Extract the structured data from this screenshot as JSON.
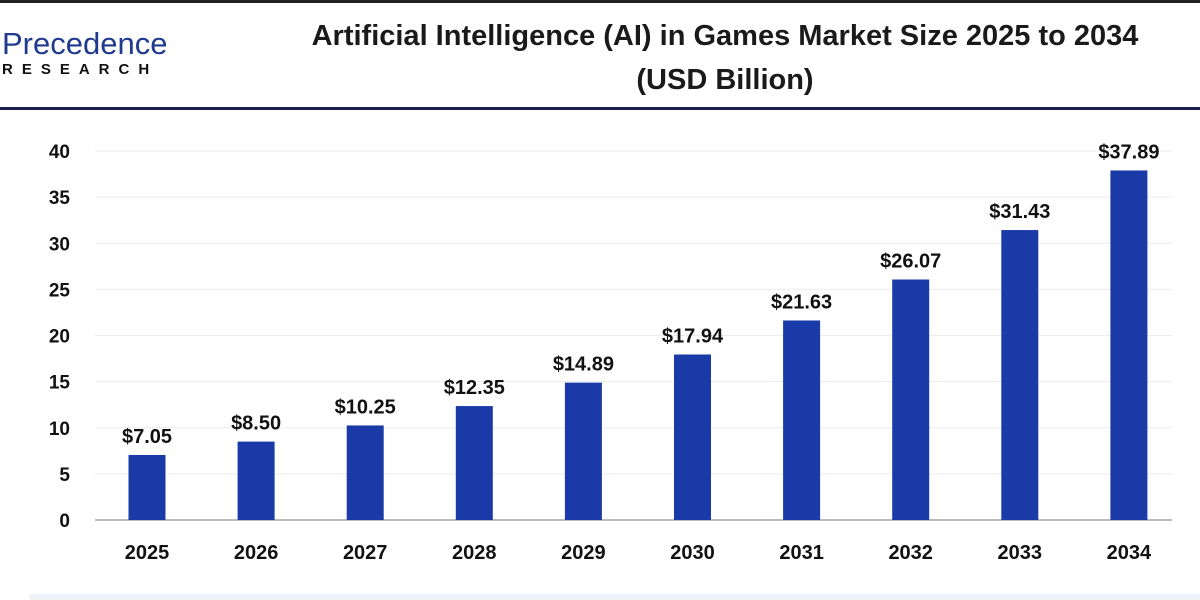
{
  "logo": {
    "line1": "Precedence",
    "line2": "RESEARCH"
  },
  "chart_data": {
    "type": "bar",
    "title": "Artificial Intelligence (AI) in Games Market Size 2025 to 2034",
    "subtitle": "(USD Billion)",
    "categories": [
      "2025",
      "2026",
      "2027",
      "2028",
      "2029",
      "2030",
      "2031",
      "2032",
      "2033",
      "2034"
    ],
    "values": [
      7.05,
      8.5,
      10.25,
      12.35,
      14.89,
      17.94,
      21.63,
      26.07,
      31.43,
      37.89
    ],
    "data_labels": [
      "$7.05",
      "$8.50",
      "$10.25",
      "$12.35",
      "$14.89",
      "$17.94",
      "$21.63",
      "$26.07",
      "$31.43",
      "$37.89"
    ],
    "yticks": [
      0,
      5,
      10,
      15,
      20,
      25,
      30,
      35,
      40
    ],
    "ylim": [
      0,
      40
    ],
    "grid": true,
    "bar_color": "#1a3aa8"
  }
}
